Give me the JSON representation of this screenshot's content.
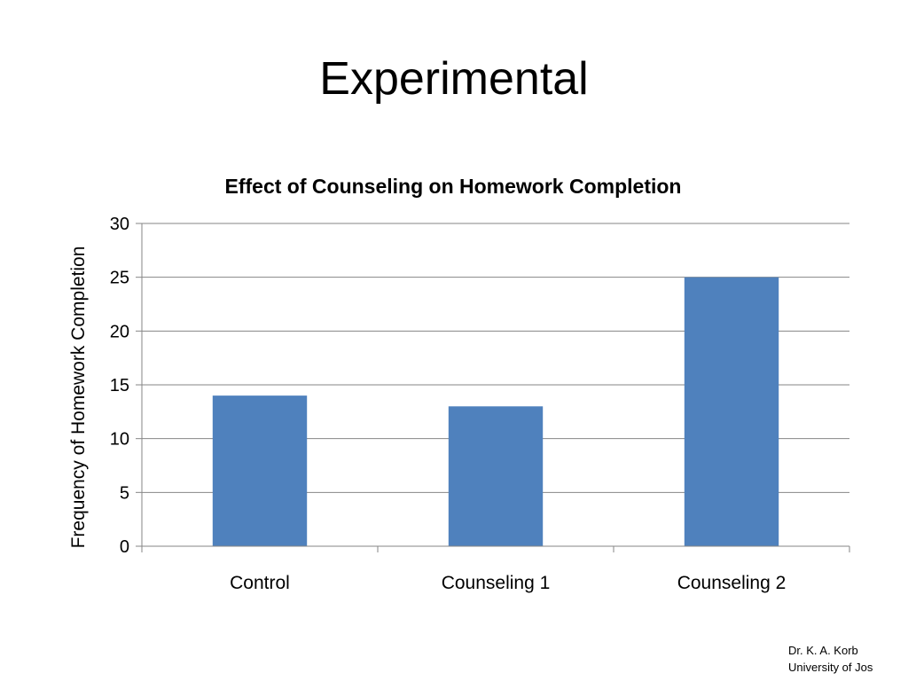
{
  "slide": {
    "title": "Experimental"
  },
  "footer": {
    "line1": "Dr. K. A. Korb",
    "line2": "University of Jos"
  },
  "colors": {
    "bar": "#4F81BD",
    "gridline": "#868686",
    "axis": "#868686"
  },
  "chart_data": {
    "type": "bar",
    "title": "Effect of Counseling on Homework Completion",
    "xlabel": "",
    "ylabel": "Frequency of Homework Completion",
    "categories": [
      "Control",
      "Counseling 1",
      "Counseling 2"
    ],
    "values": [
      14,
      13,
      25
    ],
    "ylim": [
      0,
      30
    ],
    "yticks": [
      0,
      5,
      10,
      15,
      20,
      25,
      30
    ],
    "grid": true,
    "legend": "none"
  }
}
